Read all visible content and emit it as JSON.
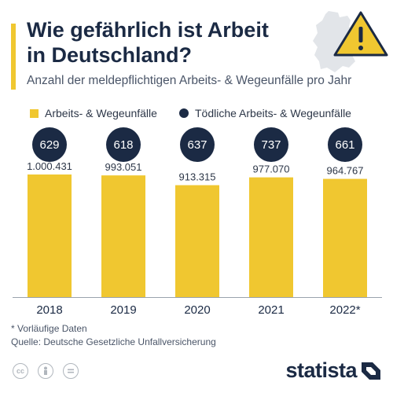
{
  "header": {
    "title": "Wie gefährlich ist Arbeit in Deutschland?",
    "subtitle": "Anzahl der meldepflichtigen Arbeits- & Wegeunfälle pro Jahr"
  },
  "legend": {
    "bars_label": "Arbeits- & Wegeunfälle",
    "dots_label": "Tödliche Arbeits- & Wegeunfälle"
  },
  "colors": {
    "bar": "#f0c730",
    "bubble": "#1b2a44",
    "title": "#1b2a44"
  },
  "icons": [
    "germany-map-icon",
    "warning-triangle-icon",
    "cc-license-icon",
    "attribution-icon",
    "no-derivatives-icon",
    "statista-logo"
  ],
  "chart_data": {
    "type": "bar",
    "categories": [
      "2018",
      "2019",
      "2020",
      "2021",
      "2022*"
    ],
    "series": [
      {
        "name": "Arbeits- & Wegeunfälle",
        "values": [
          1000431,
          993051,
          913315,
          977070,
          964767
        ],
        "labels": [
          "1.000.431",
          "993.051",
          "913.315",
          "977.070",
          "964.767"
        ]
      },
      {
        "name": "Tödliche Arbeits- & Wegeunfälle",
        "values": [
          629,
          618,
          637,
          737,
          661
        ],
        "labels": [
          "629",
          "618",
          "637",
          "737",
          "661"
        ]
      }
    ],
    "title": "Wie gefährlich ist Arbeit in Deutschland?",
    "xlabel": "",
    "ylabel": "",
    "grid": false,
    "legend_position": "top-left"
  },
  "footer": {
    "footnote": "* Vorläufige Daten",
    "source": "Quelle: Deutsche Gesetzliche Unfallversicherung",
    "brand": "statista"
  }
}
